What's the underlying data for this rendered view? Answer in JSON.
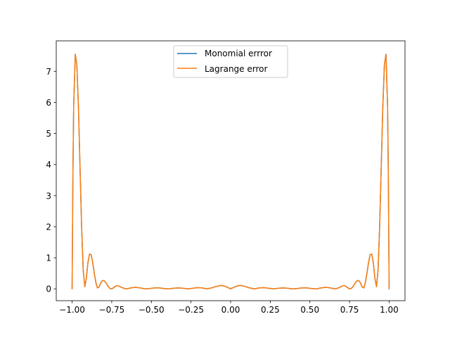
{
  "chart_data": {
    "type": "line",
    "title": "",
    "xlabel": "",
    "ylabel": "",
    "xlim": [
      -1.1,
      1.1
    ],
    "ylim": [
      -0.38,
      7.98
    ],
    "xticks": [
      -1.0,
      -0.75,
      -0.5,
      -0.25,
      0.0,
      0.25,
      0.5,
      0.75,
      1.0
    ],
    "xtick_labels": [
      "−1.00",
      "−0.75",
      "−0.50",
      "−0.25",
      "0.00",
      "0.25",
      "0.50",
      "0.75",
      "1.00"
    ],
    "yticks": [
      0,
      1,
      2,
      3,
      4,
      5,
      6,
      7
    ],
    "ytick_labels": [
      "0",
      "1",
      "2",
      "3",
      "4",
      "5",
      "6",
      "7"
    ],
    "grid": false,
    "legend_position": "top-center",
    "series": [
      {
        "name": "Monomial errror",
        "color": "#1f77b4",
        "x": [
          -1.0,
          -0.995,
          -0.99,
          -0.98,
          -0.97,
          -0.96,
          -0.95,
          -0.94,
          -0.93,
          -0.92,
          -0.91,
          -0.9,
          -0.89,
          -0.88,
          -0.87,
          -0.86,
          -0.85,
          -0.84,
          -0.83,
          -0.82,
          -0.81,
          -0.8,
          -0.79,
          -0.78,
          -0.77,
          -0.76,
          -0.75,
          -0.74,
          -0.73,
          -0.72,
          -0.71,
          -0.7,
          -0.68,
          -0.66,
          -0.64,
          -0.62,
          -0.6,
          -0.57,
          -0.54,
          -0.51,
          -0.48,
          -0.45,
          -0.42,
          -0.39,
          -0.36,
          -0.33,
          -0.3,
          -0.27,
          -0.24,
          -0.21,
          -0.18,
          -0.15,
          -0.12,
          -0.09,
          -0.06,
          -0.04,
          -0.02,
          0.0,
          0.02,
          0.04,
          0.06,
          0.09,
          0.12,
          0.15,
          0.18,
          0.21,
          0.24,
          0.27,
          0.3,
          0.33,
          0.36,
          0.39,
          0.42,
          0.45,
          0.48,
          0.51,
          0.54,
          0.57,
          0.6,
          0.62,
          0.64,
          0.66,
          0.68,
          0.7,
          0.71,
          0.72,
          0.73,
          0.74,
          0.75,
          0.76,
          0.77,
          0.78,
          0.79,
          0.8,
          0.81,
          0.82,
          0.83,
          0.84,
          0.85,
          0.86,
          0.87,
          0.88,
          0.89,
          0.9,
          0.91,
          0.92,
          0.93,
          0.94,
          0.95,
          0.96,
          0.97,
          0.98,
          0.99,
          0.995,
          1.0
        ],
        "y": [
          0.0,
          3.6,
          5.9,
          7.55,
          7.2,
          5.85,
          3.9,
          2.0,
          0.6,
          0.07,
          0.35,
          0.85,
          1.12,
          1.1,
          0.85,
          0.5,
          0.2,
          0.03,
          0.06,
          0.18,
          0.26,
          0.27,
          0.22,
          0.14,
          0.06,
          0.01,
          0.0,
          0.03,
          0.07,
          0.1,
          0.1,
          0.08,
          0.03,
          0.0,
          0.02,
          0.04,
          0.05,
          0.03,
          0.0,
          0.01,
          0.03,
          0.03,
          0.01,
          0.0,
          0.02,
          0.03,
          0.02,
          0.0,
          0.02,
          0.04,
          0.03,
          0.0,
          0.03,
          0.08,
          0.11,
          0.09,
          0.05,
          0.0,
          0.05,
          0.09,
          0.11,
          0.08,
          0.03,
          0.0,
          0.03,
          0.04,
          0.02,
          0.0,
          0.02,
          0.03,
          0.02,
          0.0,
          0.01,
          0.03,
          0.03,
          0.01,
          0.0,
          0.03,
          0.05,
          0.04,
          0.02,
          0.0,
          0.03,
          0.08,
          0.1,
          0.1,
          0.07,
          0.03,
          0.0,
          0.01,
          0.06,
          0.14,
          0.22,
          0.27,
          0.26,
          0.18,
          0.06,
          0.03,
          0.2,
          0.5,
          0.85,
          1.1,
          1.12,
          0.85,
          0.35,
          0.07,
          0.6,
          2.0,
          3.9,
          5.85,
          7.2,
          7.55,
          5.9,
          3.6,
          0.0
        ]
      },
      {
        "name": "Lagrange error",
        "color": "#ff7f0e",
        "x": [
          -1.0,
          -0.995,
          -0.99,
          -0.98,
          -0.97,
          -0.96,
          -0.95,
          -0.94,
          -0.93,
          -0.92,
          -0.91,
          -0.9,
          -0.89,
          -0.88,
          -0.87,
          -0.86,
          -0.85,
          -0.84,
          -0.83,
          -0.82,
          -0.81,
          -0.8,
          -0.79,
          -0.78,
          -0.77,
          -0.76,
          -0.75,
          -0.74,
          -0.73,
          -0.72,
          -0.71,
          -0.7,
          -0.68,
          -0.66,
          -0.64,
          -0.62,
          -0.6,
          -0.57,
          -0.54,
          -0.51,
          -0.48,
          -0.45,
          -0.42,
          -0.39,
          -0.36,
          -0.33,
          -0.3,
          -0.27,
          -0.24,
          -0.21,
          -0.18,
          -0.15,
          -0.12,
          -0.09,
          -0.06,
          -0.04,
          -0.02,
          0.0,
          0.02,
          0.04,
          0.06,
          0.09,
          0.12,
          0.15,
          0.18,
          0.21,
          0.24,
          0.27,
          0.3,
          0.33,
          0.36,
          0.39,
          0.42,
          0.45,
          0.48,
          0.51,
          0.54,
          0.57,
          0.6,
          0.62,
          0.64,
          0.66,
          0.68,
          0.7,
          0.71,
          0.72,
          0.73,
          0.74,
          0.75,
          0.76,
          0.77,
          0.78,
          0.79,
          0.8,
          0.81,
          0.82,
          0.83,
          0.84,
          0.85,
          0.86,
          0.87,
          0.88,
          0.89,
          0.9,
          0.91,
          0.92,
          0.93,
          0.94,
          0.95,
          0.96,
          0.97,
          0.98,
          0.99,
          0.995,
          1.0
        ],
        "y": [
          0.0,
          3.6,
          5.9,
          7.55,
          7.2,
          5.85,
          3.9,
          2.0,
          0.6,
          0.07,
          0.35,
          0.85,
          1.12,
          1.1,
          0.85,
          0.5,
          0.2,
          0.03,
          0.06,
          0.18,
          0.26,
          0.27,
          0.22,
          0.14,
          0.06,
          0.01,
          0.0,
          0.03,
          0.07,
          0.1,
          0.1,
          0.08,
          0.03,
          0.0,
          0.02,
          0.04,
          0.05,
          0.03,
          0.0,
          0.01,
          0.03,
          0.03,
          0.01,
          0.0,
          0.02,
          0.03,
          0.02,
          0.0,
          0.02,
          0.04,
          0.03,
          0.0,
          0.03,
          0.08,
          0.11,
          0.09,
          0.05,
          0.0,
          0.05,
          0.09,
          0.11,
          0.08,
          0.03,
          0.0,
          0.03,
          0.04,
          0.02,
          0.0,
          0.02,
          0.03,
          0.02,
          0.0,
          0.01,
          0.03,
          0.03,
          0.01,
          0.0,
          0.03,
          0.05,
          0.04,
          0.02,
          0.0,
          0.03,
          0.08,
          0.1,
          0.1,
          0.07,
          0.03,
          0.0,
          0.01,
          0.06,
          0.14,
          0.22,
          0.27,
          0.26,
          0.18,
          0.06,
          0.03,
          0.2,
          0.5,
          0.85,
          1.1,
          1.12,
          0.85,
          0.35,
          0.07,
          0.6,
          2.0,
          3.9,
          5.85,
          7.2,
          7.55,
          5.9,
          3.6,
          0.0
        ]
      }
    ]
  }
}
